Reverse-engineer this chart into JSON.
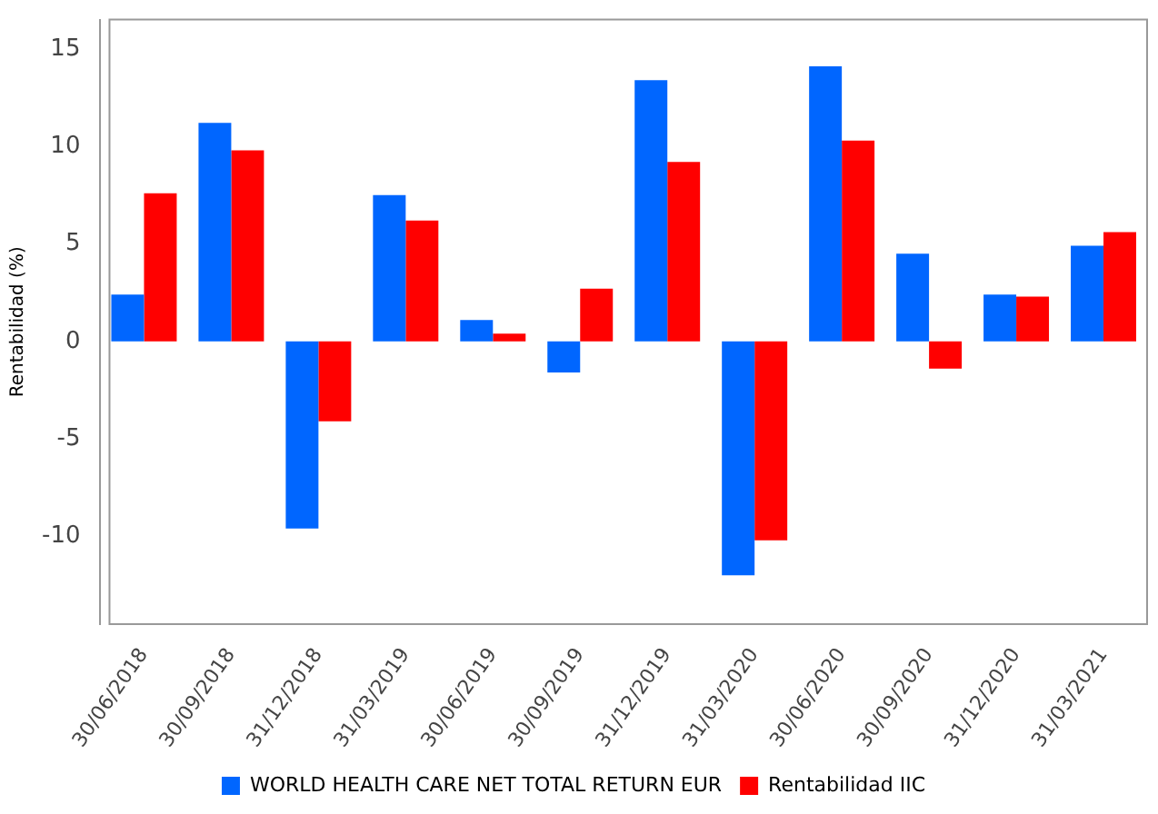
{
  "chart_data": {
    "type": "bar",
    "ylabel": "Rentabilidad (%)",
    "categories": [
      "30/06/2018",
      "30/09/2018",
      "31/12/2018",
      "31/03/2019",
      "30/06/2019",
      "30/09/2019",
      "31/12/2019",
      "31/03/2020",
      "30/06/2020",
      "30/09/2020",
      "31/12/2020",
      "31/03/2021"
    ],
    "series": [
      {
        "name": "WORLD HEALTH CARE NET TOTAL RETURN EUR",
        "color": "#0066ff",
        "values": [
          2.4,
          11.2,
          -9.6,
          7.5,
          1.1,
          -1.6,
          13.4,
          -12.0,
          14.1,
          4.5,
          2.4,
          4.9
        ]
      },
      {
        "name": "Rentabilidad IIC",
        "color": "#ff0000",
        "values": [
          7.6,
          9.8,
          -4.1,
          6.2,
          0.4,
          2.7,
          9.2,
          -10.2,
          10.3,
          -1.4,
          2.3,
          5.6
        ]
      }
    ],
    "ylim": [
      -14.5,
      16.5
    ],
    "yticks": [
      -10,
      -5,
      0,
      5,
      10,
      15
    ],
    "grid": false,
    "legend": "bottom"
  }
}
